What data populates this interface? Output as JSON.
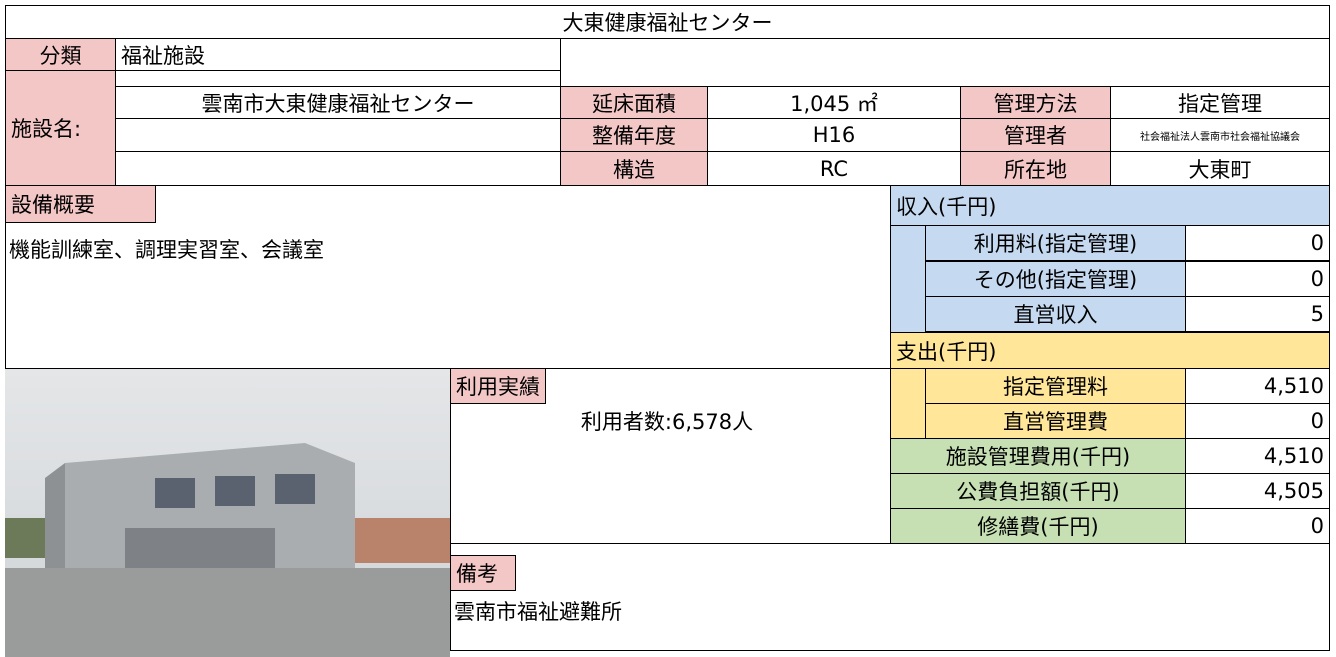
{
  "title": "大東健康福祉センター",
  "classification": {
    "label": "分類",
    "value": "福祉施設"
  },
  "facility": {
    "label": "施設名:",
    "name": "雲南市大東健康福祉センター",
    "floor_area": {
      "label": "延床面積",
      "value": "1,045 ㎡"
    },
    "year": {
      "label": "整備年度",
      "value": "H16"
    },
    "structure": {
      "label": "構造",
      "value": "RC"
    },
    "management_method": {
      "label": "管理方法",
      "value": "指定管理"
    },
    "manager": {
      "label": "管理者",
      "value": "社会福祉法人雲南市社会福祉協議会"
    },
    "location": {
      "label": "所在地",
      "value": "大東町"
    }
  },
  "equipment": {
    "label": "設備概要",
    "text": "機能訓練室、調理実習室、会議室"
  },
  "income": {
    "header": "収入(千円)",
    "rows": [
      {
        "label": "利用料(指定管理)",
        "value": "0"
      },
      {
        "label": "その他(指定管理)",
        "value": "0"
      },
      {
        "label": "直営収入",
        "value": "5"
      }
    ]
  },
  "expense": {
    "header": "支出(千円)",
    "rows": [
      {
        "label": "指定管理料",
        "value": "4,510"
      },
      {
        "label": "直営管理費",
        "value": "0"
      }
    ]
  },
  "totals": [
    {
      "label": "施設管理費用(千円)",
      "value": "4,510"
    },
    {
      "label": "公費負担額(千円)",
      "value": "4,505"
    },
    {
      "label": "修繕費(千円)",
      "value": "0"
    }
  ],
  "usage": {
    "label": "利用実績",
    "text": "利用者数:6,578人"
  },
  "remarks": {
    "label": "備考",
    "text": "雲南市福祉避難所"
  }
}
